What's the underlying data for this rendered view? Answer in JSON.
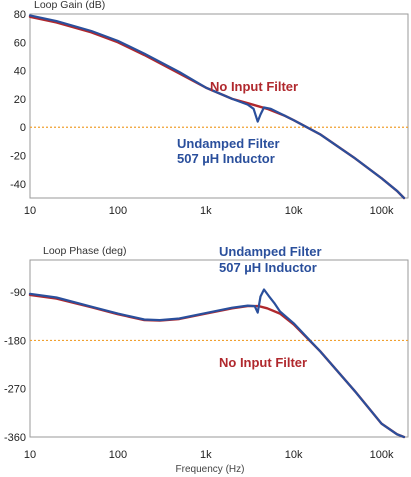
{
  "colors": {
    "no_filter": "#b0282d",
    "undamped": "#2a4f9c",
    "reference": "#f0a030",
    "frame": "#9a9a9a"
  },
  "chart_data": [
    {
      "type": "line",
      "title": "Loop Gain (dB)",
      "x_scale": "log",
      "xlim": [
        10,
        200000
      ],
      "ylim": [
        -50,
        80
      ],
      "yticks": [
        80,
        60,
        40,
        20,
        0,
        -20,
        -40
      ],
      "xticks": [
        10,
        100,
        1000,
        10000,
        100000
      ],
      "xtick_labels": [
        "10",
        "100",
        "1k",
        "10k",
        "100k"
      ],
      "reference_line": 0,
      "annotations": [
        {
          "text": "No Input Filter",
          "series": "no_filter"
        },
        {
          "text": "Undamped Filter",
          "series": "undamped"
        },
        {
          "text": "507 µH Inductor",
          "series": "undamped"
        }
      ],
      "series": [
        {
          "key": "no_filter",
          "x": [
            10,
            20,
            50,
            100,
            200,
            500,
            1000,
            2000,
            3000,
            5000,
            8000,
            10000,
            20000,
            50000,
            100000,
            150000,
            180000
          ],
          "y": [
            78,
            74,
            67,
            60,
            51,
            38,
            28,
            20,
            17,
            13,
            8,
            5,
            -5,
            -22,
            -36,
            -45,
            -50
          ]
        },
        {
          "key": "undamped",
          "x": [
            10,
            20,
            50,
            100,
            200,
            500,
            1000,
            2000,
            3000,
            3500,
            3900,
            4200,
            4600,
            5500,
            8000,
            10000,
            20000,
            50000,
            100000,
            150000,
            180000
          ],
          "y": [
            79,
            75,
            68,
            61,
            52,
            39,
            28,
            20,
            16,
            13,
            4,
            9,
            14,
            13,
            8,
            5,
            -5,
            -22,
            -36,
            -45,
            -50
          ]
        }
      ]
    },
    {
      "type": "line",
      "title": "Loop Phase (deg)",
      "xlabel": "Frequency (Hz)",
      "x_scale": "log",
      "xlim": [
        10,
        200000
      ],
      "ylim": [
        -360,
        -30
      ],
      "yticks": [
        -90,
        -180,
        -270,
        -360
      ],
      "xticks": [
        10,
        100,
        1000,
        10000,
        100000
      ],
      "xtick_labels": [
        "10",
        "100",
        "1k",
        "10k",
        "100k"
      ],
      "reference_line": -180,
      "annotations": [
        {
          "text": "Undamped Filter",
          "series": "undamped"
        },
        {
          "text": "507 µH Inductor",
          "series": "undamped"
        },
        {
          "text": "No Input Filter",
          "series": "no_filter"
        }
      ],
      "series": [
        {
          "key": "no_filter",
          "x": [
            10,
            20,
            50,
            100,
            200,
            300,
            500,
            1000,
            2000,
            3000,
            4000,
            5000,
            7000,
            10000,
            20000,
            50000,
            100000,
            150000,
            180000
          ],
          "y": [
            -95,
            -102,
            -118,
            -131,
            -142,
            -143,
            -140,
            -130,
            -120,
            -116,
            -116,
            -120,
            -130,
            -150,
            -200,
            -275,
            -335,
            -355,
            -360
          ]
        },
        {
          "key": "undamped",
          "x": [
            10,
            20,
            50,
            100,
            200,
            300,
            500,
            1000,
            2000,
            3000,
            3600,
            3900,
            4200,
            4600,
            5200,
            6000,
            7000,
            10000,
            20000,
            50000,
            100000,
            150000,
            180000
          ],
          "y": [
            -93,
            -100,
            -117,
            -130,
            -141,
            -142,
            -139,
            -129,
            -119,
            -115,
            -116,
            -128,
            -98,
            -85,
            -97,
            -110,
            -126,
            -148,
            -200,
            -275,
            -335,
            -355,
            -360
          ]
        }
      ]
    }
  ]
}
